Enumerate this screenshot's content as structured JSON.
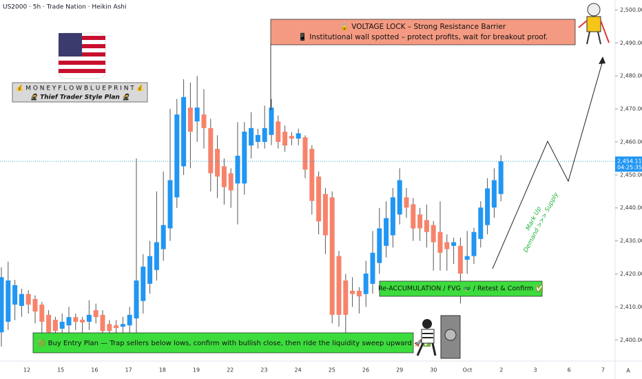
{
  "chart_data": {
    "type": "candlestick",
    "title": "US2000 · 5h · Trade Nation · Heikin Ashi",
    "up_color": "#2196f3",
    "down_color": "#f7836b",
    "open": [
      2402.3,
      2405.5,
      2410.7,
      2410.3,
      2413.9,
      2412.4,
      2410.7,
      2407.6,
      2406.1,
      2403.4,
      2404.4,
      2406.9,
      2406.1,
      2405.5,
      2409.0,
      2407.6,
      2404.8,
      2404.4,
      2404.0,
      2404.4,
      2406.5,
      2411.8,
      2417.0,
      2421.2,
      2427.5,
      2433.8,
      2443.2,
      2452.6,
      2470.4,
      2466.2,
      2468.3,
      2464.2,
      2457.9,
      2452.6,
      2450.5,
      2447.4,
      2447.4,
      2458.9,
      2460.0,
      2460.0,
      2462.1,
      2466.2,
      2463.1,
      2461.8,
      2461.0,
      2461.4,
      2457.9,
      2449.5,
      2444.2,
      2443.2,
      2425.4,
      2418.0,
      2414.9,
      2414.9,
      2413.9,
      2417.0,
      2423.3,
      2428.5,
      2431.7,
      2438.0,
      2443.2,
      2441.1,
      2438.0,
      2436.3,
      2434.8,
      2432.7,
      2429.6,
      2428.5,
      2428.5,
      2424.3,
      2425.4,
      2430.6,
      2434.8,
      2440.1,
      2444.2
    ],
    "high": [
      2422,
      2423.7,
      2418.2,
      2415.5,
      2415,
      2413.5,
      2411.5,
      2409,
      2407,
      2408,
      2410,
      2408,
      2407,
      2412,
      2411,
      2409,
      2406,
      2406,
      2407,
      2410,
      2455,
      2426,
      2430,
      2445,
      2451,
      2470,
      2473,
      2479,
      2478,
      2480,
      2476,
      2467,
      2462,
      2455,
      2452,
      2466,
      2466,
      2469,
      2464,
      2471,
      2473,
      2468,
      2465,
      2463,
      2464,
      2462,
      2459,
      2451,
      2446,
      2445,
      2427,
      2420,
      2419,
      2416,
      2424,
      2433,
      2440,
      2442,
      2446,
      2452,
      2446,
      2443,
      2440,
      2441,
      2436,
      2442,
      2432,
      2431,
      2431,
      2433,
      2434,
      2442,
      2449,
      2452,
      2456
    ],
    "low": [
      2398,
      2403,
      2406,
      2407,
      2408,
      2405,
      2401,
      2398,
      2397,
      2400,
      2401,
      2403,
      2402,
      2403,
      2405,
      2396,
      2400,
      2401,
      2402,
      2402,
      2396,
      2408,
      2414,
      2418,
      2424,
      2430,
      2440,
      2450,
      2452,
      2460,
      2458,
      2445,
      2443,
      2441,
      2440,
      2435,
      2444,
      2455,
      2458,
      2458,
      2459,
      2458,
      2457,
      2459,
      2459,
      2449,
      2438,
      2432,
      2426,
      2405,
      2404,
      2402,
      2410,
      2408,
      2410,
      2414,
      2420,
      2425,
      2428,
      2435,
      2437,
      2430,
      2430,
      2428,
      2421,
      2421,
      2421,
      2423,
      2411,
      2420,
      2423,
      2428,
      2432,
      2437,
      2442
    ],
    "close": [
      2419.0,
      2418.0,
      2416.6,
      2413.9,
      2410.7,
      2408.6,
      2405.5,
      2402.3,
      2402.7,
      2405.5,
      2406.9,
      2405.5,
      2405.3,
      2407.6,
      2406.9,
      2402.7,
      2402.7,
      2403.6,
      2404.8,
      2407.6,
      2418.0,
      2422.2,
      2425.4,
      2429.6,
      2434.8,
      2448.4,
      2468.3,
      2473.6,
      2463.1,
      2470.4,
      2464.2,
      2450.5,
      2449.5,
      2446.3,
      2445.3,
      2455.8,
      2463.1,
      2464.2,
      2462.1,
      2464.2,
      2470.4,
      2460.0,
      2458.9,
      2461.0,
      2462.6,
      2451.6,
      2442.1,
      2435.9,
      2431.7,
      2407.6,
      2407.6,
      2407.6,
      2413.9,
      2413.2,
      2420.1,
      2426.4,
      2433.8,
      2436.9,
      2443.2,
      2448.4,
      2440.1,
      2433.8,
      2433.8,
      2432.7,
      2429.6,
      2426.4,
      2427.5,
      2429.6,
      2420.1,
      2425.4,
      2432.7,
      2440.1,
      2445.9,
      2448.4,
      2454.11
    ],
    "ylim": [
      2394,
      2503
    ],
    "yticks": [
      {
        "value": 2400,
        "label": "2,400.00"
      },
      {
        "value": 2410,
        "label": "2,410.00"
      },
      {
        "value": 2420,
        "label": "2,420.00"
      },
      {
        "value": 2430,
        "label": "2,430.00"
      },
      {
        "value": 2440,
        "label": "2,440.00"
      },
      {
        "value": 2450,
        "label": "2,450.00"
      },
      {
        "value": 2460,
        "label": "2,460.00"
      },
      {
        "value": 2470,
        "label": "2,470.00"
      },
      {
        "value": 2480,
        "label": "2,480.00"
      },
      {
        "value": 2490,
        "label": "2,490.00"
      },
      {
        "value": 2500,
        "label": "2,500.00"
      }
    ],
    "xtick_labels": [
      "12",
      "15",
      "16",
      "17",
      "18",
      "19",
      "22",
      "23",
      "24",
      "25",
      "26",
      "29",
      "30",
      "Oct",
      "2",
      "3",
      "6",
      "7"
    ],
    "last_price": {
      "value": 2454.11,
      "label": "2,454.11"
    },
    "countdown": "04:25:35",
    "scale_mode": "A",
    "annotations": {
      "voltage_title": "🔒 VOLTAGE LOCK – Strong Resistance Barrier",
      "voltage_sub": "📱 Institutional wall spotted – protect profits, wait for breakout proof.",
      "blueprint": "💰 M O N E Y  F L O W  B L U E P R I N T 💰",
      "thief": "🥷 Thief Trader Style Plan 🥷",
      "buy_plan": "🟢 Buy Entry Plan — Trap sellers below lows, confirm with bullish close, then ride the liquidity sweep upward 🚀✅",
      "reaccumulation": "Re-ACCUMULATION / FVG 🐲 / Retest & Confirm ✅",
      "markup": [
        "Mark Up",
        "Demand >>> Supply"
      ]
    }
  }
}
